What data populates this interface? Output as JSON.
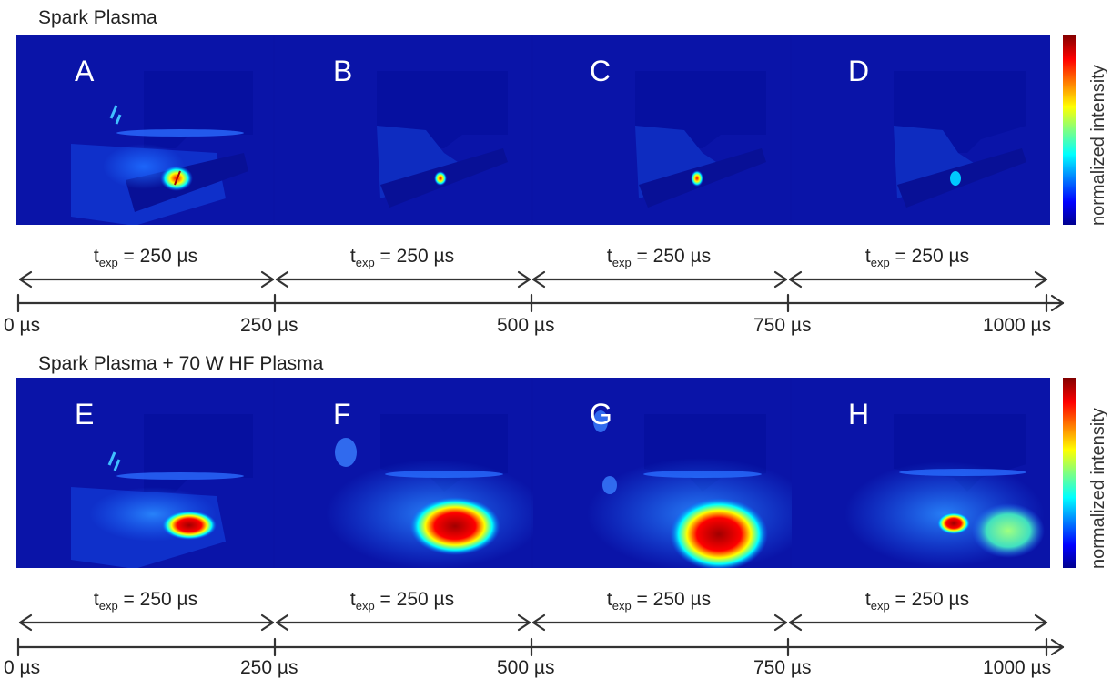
{
  "rows": [
    {
      "title": "Spark Plasma",
      "panels": [
        {
          "letter": "A",
          "scene": "spark-a"
        },
        {
          "letter": "B",
          "scene": "spark-b"
        },
        {
          "letter": "C",
          "scene": "spark-c"
        },
        {
          "letter": "D",
          "scene": "spark-d"
        }
      ],
      "colorbar_label": "normalized intensity",
      "exposures": [
        {
          "t": "t",
          "sub": "exp",
          "rest": " = 250 µs"
        },
        {
          "t": "t",
          "sub": "exp",
          "rest": " = 250 µs"
        },
        {
          "t": "t",
          "sub": "exp",
          "rest": " = 250 µs"
        },
        {
          "t": "t",
          "sub": "exp",
          "rest": " = 250 µs"
        }
      ],
      "ticks": [
        "0 µs",
        "250 µs",
        "500 µs",
        "750 µs",
        "1000 µs"
      ]
    },
    {
      "title": "Spark Plasma + 70 W HF Plasma",
      "panels": [
        {
          "letter": "E",
          "scene": "hf-e"
        },
        {
          "letter": "F",
          "scene": "hf-f"
        },
        {
          "letter": "G",
          "scene": "hf-g"
        },
        {
          "letter": "H",
          "scene": "hf-h"
        }
      ],
      "colorbar_label": "normalized intensity",
      "exposures": [
        {
          "t": "t",
          "sub": "exp",
          "rest": " = 250 µs"
        },
        {
          "t": "t",
          "sub": "exp",
          "rest": " = 250 µs"
        },
        {
          "t": "t",
          "sub": "exp",
          "rest": " = 250 µs"
        },
        {
          "t": "t",
          "sub": "exp",
          "rest": " = 250 µs"
        }
      ],
      "ticks": [
        "0 µs",
        "250 µs",
        "500 µs",
        "750 µs",
        "1000 µs"
      ]
    }
  ],
  "colors": {
    "background": "#0a14a8",
    "jet": [
      "#00008f",
      "#0000ff",
      "#0080ff",
      "#00ffff",
      "#80ff80",
      "#ffff00",
      "#ff8000",
      "#ff0000",
      "#800000"
    ],
    "axis": "#333333"
  }
}
